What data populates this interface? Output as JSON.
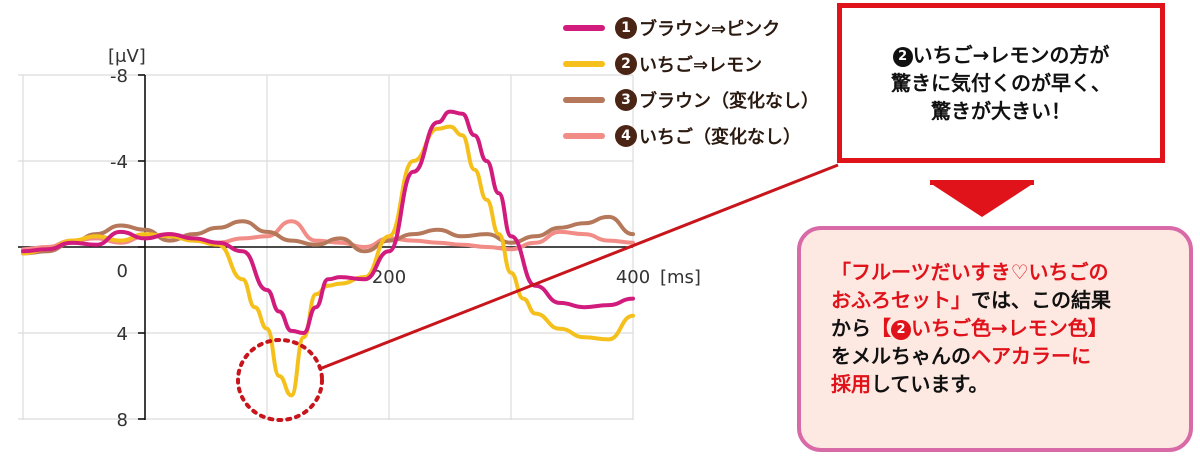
{
  "chart_data": {
    "type": "line",
    "unit_y": "[μV]",
    "unit_x": "[ms]",
    "y_reversed": true,
    "ylim": [
      -10,
      8
    ],
    "xlim": [
      -100,
      400
    ],
    "y_ticks": [
      "-8",
      "-4",
      "0",
      "4",
      "8"
    ],
    "x_ticks": [
      "200",
      "400"
    ],
    "grid": true,
    "legend_position": "top-right",
    "series": [
      {
        "name": "ブラウン⇒ピンク",
        "number": "1",
        "color": "#d11c7d",
        "x": [
          -100,
          -80,
          -60,
          -40,
          -20,
          0,
          20,
          40,
          60,
          80,
          100,
          110,
          120,
          130,
          140,
          150,
          160,
          180,
          200,
          220,
          240,
          250,
          260,
          270,
          280,
          290,
          300,
          320,
          340,
          360,
          380,
          400
        ],
        "y": [
          0.2,
          0.1,
          -0.2,
          -0.1,
          -0.7,
          -0.4,
          -0.6,
          -0.4,
          -0.2,
          0.2,
          2.0,
          3.0,
          3.9,
          4.0,
          2.8,
          1.5,
          1.4,
          1.5,
          0.2,
          -3.5,
          -5.8,
          -6.3,
          -6.2,
          -5.2,
          -4.0,
          -2.5,
          -0.5,
          1.8,
          2.6,
          2.8,
          2.7,
          2.4
        ]
      },
      {
        "name": "いちご⇒レモン",
        "number": "2",
        "color": "#f5c01b",
        "x": [
          -100,
          -80,
          -60,
          -40,
          -20,
          0,
          20,
          40,
          60,
          80,
          90,
          100,
          110,
          120,
          130,
          140,
          150,
          160,
          180,
          200,
          220,
          240,
          250,
          260,
          270,
          280,
          290,
          300,
          310,
          320,
          340,
          360,
          380,
          400
        ],
        "y": [
          0.3,
          0.1,
          -0.3,
          -0.5,
          -0.3,
          -0.6,
          -0.5,
          -0.3,
          -0.1,
          1.5,
          2.8,
          3.8,
          6.0,
          6.9,
          4.2,
          2.2,
          1.8,
          1.7,
          1.4,
          -0.5,
          -4.0,
          -5.5,
          -5.6,
          -5.2,
          -3.6,
          -2.2,
          -0.6,
          1.2,
          2.4,
          3.1,
          3.8,
          4.2,
          4.3,
          3.2
        ]
      },
      {
        "name": "ブラウン（変化なし）",
        "number": "3",
        "color": "#b5785a",
        "x": [
          -100,
          -80,
          -60,
          -40,
          -20,
          0,
          20,
          40,
          60,
          80,
          100,
          120,
          140,
          160,
          180,
          200,
          220,
          240,
          260,
          280,
          300,
          320,
          340,
          360,
          380,
          400
        ],
        "y": [
          0.3,
          0.2,
          -0.2,
          -0.6,
          -1.0,
          -0.8,
          -0.3,
          -0.6,
          -0.9,
          -1.2,
          -0.7,
          -0.3,
          -0.1,
          -0.4,
          0.2,
          -0.3,
          -0.6,
          -0.8,
          -0.5,
          -0.6,
          -0.2,
          -0.5,
          -0.9,
          -1.1,
          -1.4,
          -0.6
        ]
      },
      {
        "name": "いちご（変化なし）",
        "number": "4",
        "color": "#f28c87",
        "x": [
          -100,
          -80,
          -60,
          -40,
          -20,
          0,
          20,
          40,
          60,
          80,
          100,
          120,
          140,
          160,
          180,
          200,
          220,
          240,
          260,
          280,
          300,
          320,
          340,
          360,
          380,
          400
        ],
        "y": [
          0.1,
          0.0,
          -0.3,
          -0.4,
          -0.2,
          -0.5,
          -0.6,
          -0.3,
          -0.2,
          -0.4,
          -0.5,
          -1.2,
          -0.3,
          -0.2,
          0.0,
          -0.4,
          -0.3,
          -0.2,
          -0.1,
          0.0,
          0.1,
          -0.2,
          -0.7,
          -0.6,
          -0.3,
          -0.2
        ]
      }
    ]
  },
  "callout": {
    "number": "2",
    "line1": "いちご→レモンの方が",
    "line2": "驚きに気付くのが早く、",
    "line3": "驚きが大きい！"
  },
  "info": {
    "p1_red": "「フルーツだいすき♡いちごの",
    "p2_red": "おふろセット」",
    "p2_black": "では、この結果",
    "p3_black": "から",
    "p3_red_a": "【",
    "p3_number": "2",
    "p3_red_b": "いちご色→レモン色】",
    "p4_black": "をメルちゃんの",
    "p4_red": "ヘアカラーに",
    "p5_red": "採用",
    "p5_black": "しています。"
  }
}
